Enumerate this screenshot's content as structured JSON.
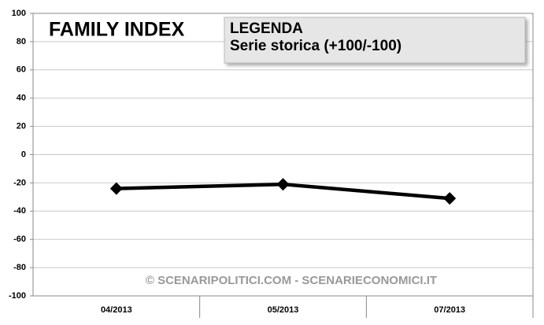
{
  "chart_data": {
    "type": "line",
    "title": "FAMILY INDEX",
    "legend_title": "LEGENDA",
    "annotation": "© SCENARIPOLITICI.COM - SCENARIECONOMICI.IT",
    "categories": [
      "04/2013",
      "05/2013",
      "07/2013"
    ],
    "series": [
      {
        "name": "Serie storica (+100/-100)",
        "color": "#000000",
        "values": [
          -24,
          -21,
          -31
        ]
      }
    ],
    "ylim": [
      -100,
      100
    ],
    "yticks": [
      -100,
      -80,
      -60,
      -40,
      -20,
      0,
      20,
      40,
      60,
      80,
      100
    ],
    "grid": true,
    "legend": "top-right"
  }
}
